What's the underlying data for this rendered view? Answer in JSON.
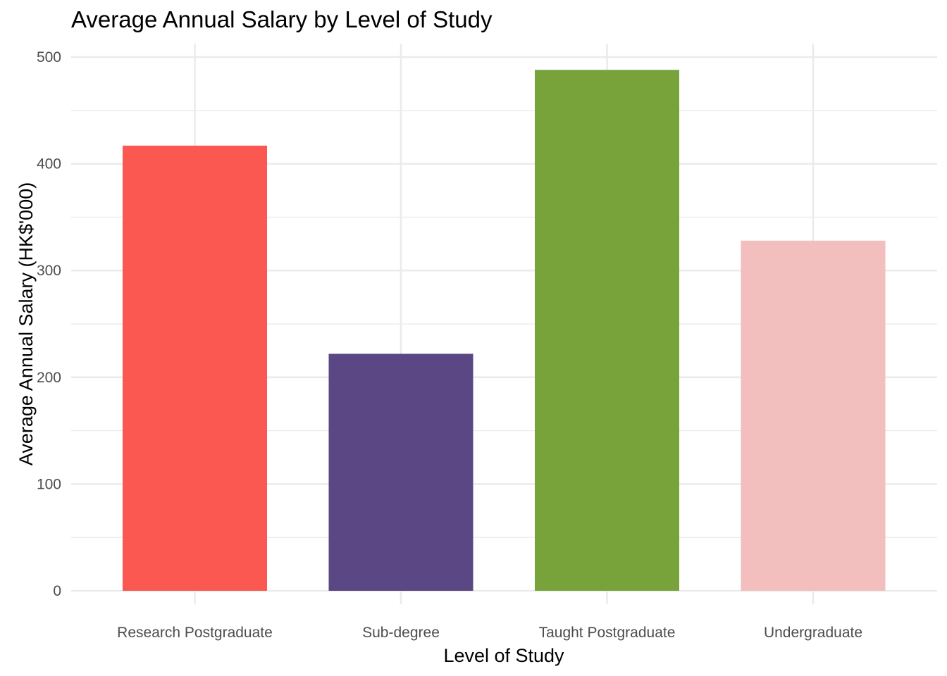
{
  "chart_data": {
    "type": "bar",
    "title": "Average Annual Salary by Level of Study",
    "xlabel": "Level of Study",
    "ylabel": "Average Annual Salary (HK$'000)",
    "categories": [
      "Research Postgraduate",
      "Sub-degree",
      "Taught Postgraduate",
      "Undergraduate"
    ],
    "values": [
      417,
      222,
      488,
      328
    ],
    "colors": [
      "#fa5850",
      "#5a4783",
      "#78a33a",
      "#f2bebe"
    ],
    "ylim": [
      0,
      500
    ],
    "yticks": [
      "0",
      "100",
      "200",
      "300",
      "400",
      "500"
    ],
    "grid": true,
    "legend": "none"
  }
}
